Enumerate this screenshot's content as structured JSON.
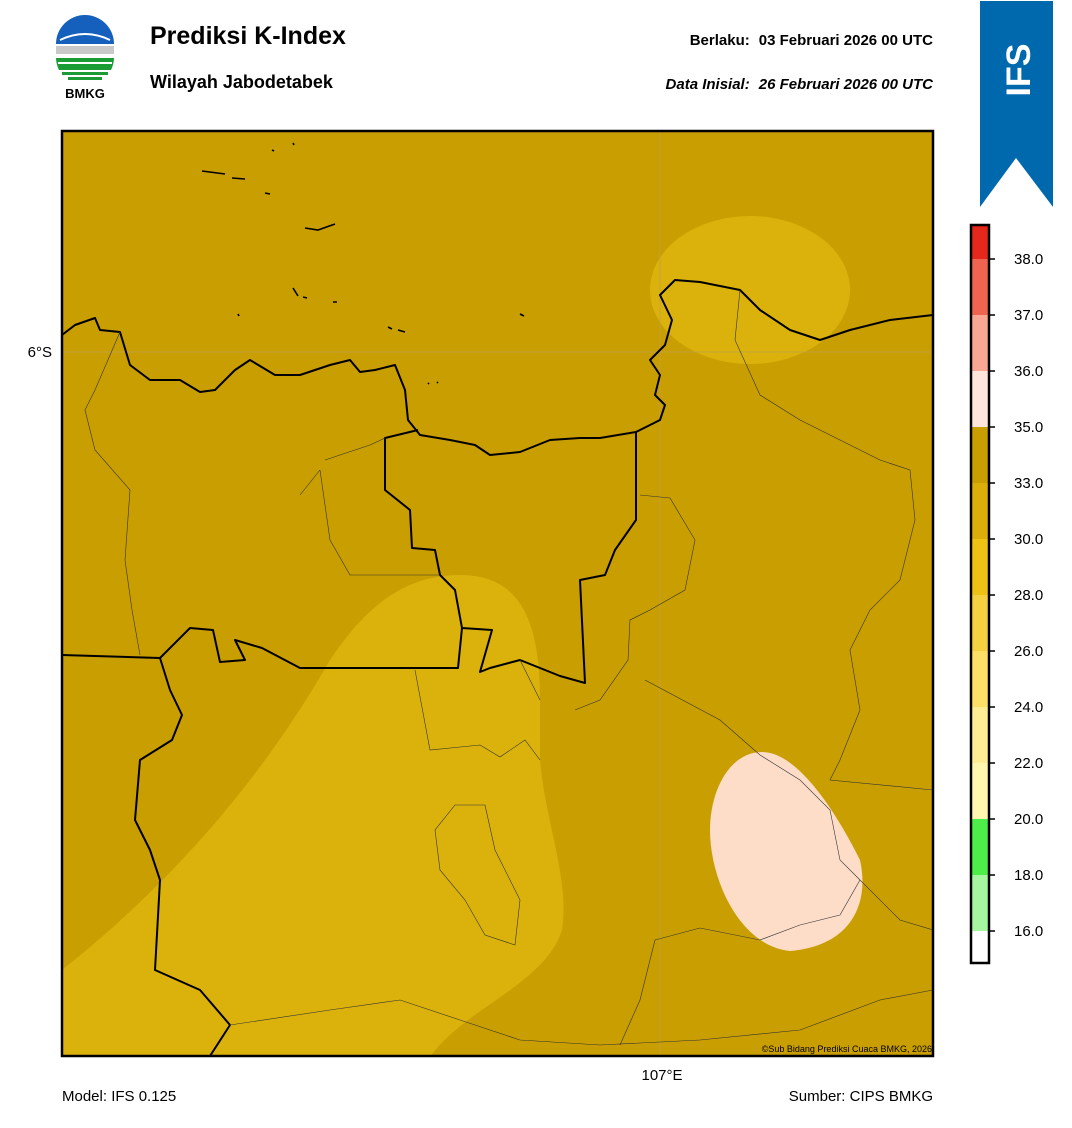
{
  "header": {
    "title": "Prediksi K-Index",
    "subtitle": "Wilayah Jabodetabek",
    "logo_text": "BMKG",
    "valid_label": "Berlaku:",
    "valid_time": "03 Februari 2026 00 UTC",
    "init_label": "Data Inisial:",
    "init_time": "26 Februari 2026 00 UTC",
    "badge": "IFS"
  },
  "map": {
    "lat_label": "6°S",
    "lon_label": "107°E",
    "credit": "©Sub Bidang Prediksi Cuaca BMKG, 2026"
  },
  "colorbar": {
    "ticks": [
      {
        "value": 16,
        "label": "16.0"
      },
      {
        "value": 18,
        "label": "18.0"
      },
      {
        "value": 20,
        "label": "20.0"
      },
      {
        "value": 22,
        "label": "22.0"
      },
      {
        "value": 24,
        "label": "24.0"
      },
      {
        "value": 26,
        "label": "26.0"
      },
      {
        "value": 28,
        "label": "28.0"
      },
      {
        "value": 30,
        "label": "30.0"
      },
      {
        "value": 33,
        "label": "33.0"
      },
      {
        "value": 35,
        "label": "35.0"
      },
      {
        "value": 36,
        "label": "36.0"
      },
      {
        "value": 37,
        "label": "37.0"
      },
      {
        "value": 38,
        "label": "38.0"
      }
    ],
    "colors": [
      "#ffffff",
      "#a6f5a0",
      "#4ded4a",
      "#fff6b0",
      "#ffec93",
      "#ffe066",
      "#f5d040",
      "#edc214",
      "#dbae0a",
      "#c99e00",
      "#ffe4dc",
      "#f9a693",
      "#ef6450",
      "#e4281c"
    ]
  },
  "footer": {
    "model": "Model: IFS 0.125",
    "source": "Sumber: CIPS BMKG"
  }
}
